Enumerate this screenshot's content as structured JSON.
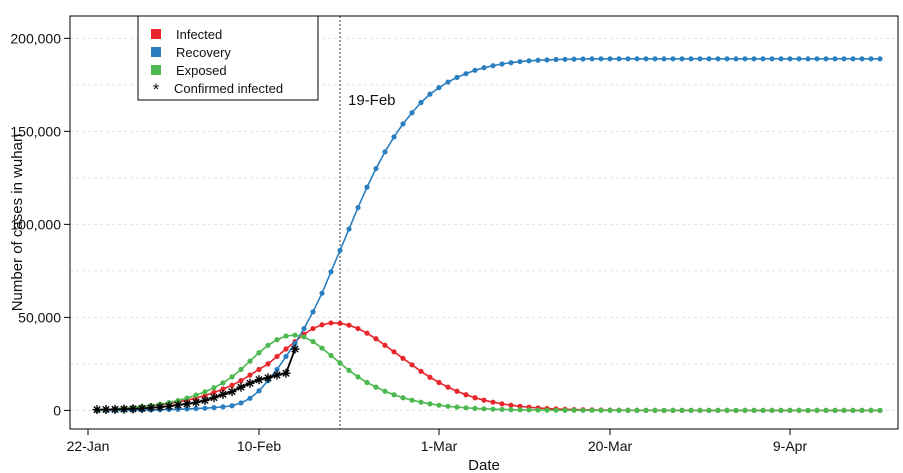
{
  "chart_data": {
    "type": "line",
    "xlabel": "Date",
    "ylabel": "Number of cases in wuhan",
    "x_tick_labels": [
      "22-Jan",
      "10-Feb",
      "1-Mar",
      "20-Mar",
      "9-Apr"
    ],
    "x_tick_days": [
      0,
      19,
      39,
      58,
      78
    ],
    "ylim": [
      0,
      200000
    ],
    "y_ticks": [
      0,
      50000,
      100000,
      150000,
      200000
    ],
    "y_tick_labels": [
      "0",
      "50,000",
      "100,000",
      "150,000",
      "200,000"
    ],
    "xlim_days": [
      -2,
      90
    ],
    "x_date_origin": "22-Jan",
    "grid": true,
    "legend_position": "top-left",
    "annotation": {
      "label": "19-Feb",
      "day": 28
    },
    "series": [
      {
        "name": "Infected",
        "color": "#e8262b",
        "marker": "dot",
        "points": [
          [
            1,
            0
          ],
          [
            2,
            400
          ],
          [
            3,
            800
          ],
          [
            4,
            1200
          ],
          [
            5,
            1600
          ],
          [
            6,
            2000
          ],
          [
            7,
            2500
          ],
          [
            8,
            3000
          ],
          [
            9,
            3700
          ],
          [
            10,
            4500
          ],
          [
            11,
            5500
          ],
          [
            12,
            6700
          ],
          [
            13,
            8000
          ],
          [
            14,
            9700
          ],
          [
            15,
            11500
          ],
          [
            16,
            13500
          ],
          [
            17,
            16000
          ],
          [
            18,
            19000
          ],
          [
            19,
            22000
          ],
          [
            20,
            25000
          ],
          [
            21,
            29000
          ],
          [
            22,
            33000
          ],
          [
            23,
            37000
          ],
          [
            24,
            41000
          ],
          [
            25,
            44000
          ],
          [
            26,
            46000
          ],
          [
            27,
            47000
          ],
          [
            28,
            46800
          ],
          [
            29,
            45800
          ],
          [
            30,
            44000
          ],
          [
            31,
            41500
          ],
          [
            32,
            38500
          ],
          [
            33,
            35000
          ],
          [
            34,
            31500
          ],
          [
            35,
            28000
          ],
          [
            36,
            24500
          ],
          [
            37,
            21000
          ],
          [
            38,
            17800
          ],
          [
            39,
            15000
          ],
          [
            40,
            12500
          ],
          [
            41,
            10300
          ],
          [
            42,
            8400
          ],
          [
            43,
            6800
          ],
          [
            44,
            5500
          ],
          [
            45,
            4400
          ],
          [
            46,
            3500
          ],
          [
            47,
            2800
          ],
          [
            48,
            2200
          ],
          [
            49,
            1700
          ],
          [
            50,
            1300
          ],
          [
            51,
            1000
          ],
          [
            52,
            800
          ],
          [
            53,
            600
          ],
          [
            54,
            450
          ],
          [
            55,
            350
          ],
          [
            56,
            270
          ],
          [
            57,
            200
          ],
          [
            58,
            150
          ],
          [
            59,
            110
          ],
          [
            60,
            80
          ],
          [
            61,
            60
          ],
          [
            62,
            40
          ],
          [
            63,
            30
          ],
          [
            64,
            20
          ],
          [
            65,
            15
          ],
          [
            66,
            10
          ],
          [
            67,
            5
          ],
          [
            68,
            0
          ],
          [
            69,
            0
          ],
          [
            70,
            0
          ],
          [
            71,
            0
          ],
          [
            72,
            0
          ],
          [
            73,
            0
          ],
          [
            74,
            0
          ],
          [
            75,
            0
          ],
          [
            76,
            0
          ],
          [
            77,
            0
          ],
          [
            78,
            0
          ],
          [
            79,
            0
          ],
          [
            80,
            0
          ],
          [
            81,
            0
          ],
          [
            82,
            0
          ],
          [
            83,
            0
          ],
          [
            84,
            0
          ],
          [
            85,
            0
          ],
          [
            86,
            0
          ],
          [
            87,
            0
          ],
          [
            88,
            0
          ]
        ]
      },
      {
        "name": "Recovery",
        "color": "#2a7fc0",
        "marker": "dot",
        "points": [
          [
            1,
            0
          ],
          [
            2,
            0
          ],
          [
            3,
            0
          ],
          [
            4,
            100
          ],
          [
            5,
            150
          ],
          [
            6,
            200
          ],
          [
            7,
            300
          ],
          [
            8,
            400
          ],
          [
            9,
            500
          ],
          [
            10,
            600
          ],
          [
            11,
            800
          ],
          [
            12,
            1000
          ],
          [
            13,
            1200
          ],
          [
            14,
            1500
          ],
          [
            15,
            1900
          ],
          [
            16,
            2500
          ],
          [
            17,
            4000
          ],
          [
            18,
            6500
          ],
          [
            19,
            10500
          ],
          [
            20,
            16000
          ],
          [
            21,
            22000
          ],
          [
            22,
            29000
          ],
          [
            23,
            36000
          ],
          [
            24,
            44000
          ],
          [
            25,
            53000
          ],
          [
            26,
            63000
          ],
          [
            27,
            74500
          ],
          [
            28,
            86000
          ],
          [
            29,
            97500
          ],
          [
            30,
            109000
          ],
          [
            31,
            120000
          ],
          [
            32,
            130000
          ],
          [
            33,
            139000
          ],
          [
            34,
            147000
          ],
          [
            35,
            154000
          ],
          [
            36,
            160000
          ],
          [
            37,
            165500
          ],
          [
            38,
            170000
          ],
          [
            39,
            173500
          ],
          [
            40,
            176500
          ],
          [
            41,
            179000
          ],
          [
            42,
            181000
          ],
          [
            43,
            182800
          ],
          [
            44,
            184200
          ],
          [
            45,
            185300
          ],
          [
            46,
            186200
          ],
          [
            47,
            186900
          ],
          [
            48,
            187500
          ],
          [
            49,
            187900
          ],
          [
            50,
            188200
          ],
          [
            51,
            188400
          ],
          [
            52,
            188600
          ],
          [
            53,
            188700
          ],
          [
            54,
            188800
          ],
          [
            55,
            188900
          ],
          [
            56,
            189000
          ],
          [
            57,
            189000
          ],
          [
            58,
            189000
          ],
          [
            59,
            189000
          ],
          [
            60,
            189000
          ],
          [
            61,
            189000
          ],
          [
            62,
            189000
          ],
          [
            63,
            189000
          ],
          [
            64,
            189000
          ],
          [
            65,
            189000
          ],
          [
            66,
            189000
          ],
          [
            67,
            189000
          ],
          [
            68,
            189000
          ],
          [
            69,
            189000
          ],
          [
            70,
            189000
          ],
          [
            71,
            189000
          ],
          [
            72,
            189000
          ],
          [
            73,
            189000
          ],
          [
            74,
            189000
          ],
          [
            75,
            189000
          ],
          [
            76,
            189000
          ],
          [
            77,
            189000
          ],
          [
            78,
            189000
          ],
          [
            79,
            189000
          ],
          [
            80,
            189000
          ],
          [
            81,
            189000
          ],
          [
            82,
            189000
          ],
          [
            83,
            189000
          ],
          [
            84,
            189000
          ],
          [
            85,
            189000
          ],
          [
            86,
            189000
          ],
          [
            87,
            189000
          ],
          [
            88,
            189000
          ]
        ]
      },
      {
        "name": "Exposed",
        "color": "#4cb84f",
        "marker": "dot",
        "points": [
          [
            1,
            0
          ],
          [
            2,
            300
          ],
          [
            3,
            700
          ],
          [
            4,
            1100
          ],
          [
            5,
            1500
          ],
          [
            6,
            2000
          ],
          [
            7,
            2600
          ],
          [
            8,
            3300
          ],
          [
            9,
            4200
          ],
          [
            10,
            5300
          ],
          [
            11,
            6600
          ],
          [
            12,
            8200
          ],
          [
            13,
            10000
          ],
          [
            14,
            12200
          ],
          [
            15,
            14800
          ],
          [
            16,
            18000
          ],
          [
            17,
            22000
          ],
          [
            18,
            26500
          ],
          [
            19,
            31000
          ],
          [
            20,
            35000
          ],
          [
            21,
            38000
          ],
          [
            22,
            40000
          ],
          [
            23,
            40500
          ],
          [
            24,
            39500
          ],
          [
            25,
            37000
          ],
          [
            26,
            33500
          ],
          [
            27,
            29500
          ],
          [
            28,
            25500
          ],
          [
            29,
            21500
          ],
          [
            30,
            18000
          ],
          [
            31,
            15000
          ],
          [
            32,
            12500
          ],
          [
            33,
            10300
          ],
          [
            34,
            8400
          ],
          [
            35,
            6800
          ],
          [
            36,
            5500
          ],
          [
            37,
            4400
          ],
          [
            38,
            3500
          ],
          [
            39,
            2800
          ],
          [
            40,
            2200
          ],
          [
            41,
            1750
          ],
          [
            42,
            1380
          ],
          [
            43,
            1080
          ],
          [
            44,
            850
          ],
          [
            45,
            660
          ],
          [
            46,
            510
          ],
          [
            47,
            400
          ],
          [
            48,
            310
          ],
          [
            49,
            240
          ],
          [
            50,
            185
          ],
          [
            51,
            140
          ],
          [
            52,
            110
          ],
          [
            53,
            85
          ],
          [
            54,
            65
          ],
          [
            55,
            50
          ],
          [
            56,
            38
          ],
          [
            57,
            29
          ],
          [
            58,
            22
          ],
          [
            59,
            17
          ],
          [
            60,
            13
          ],
          [
            61,
            10
          ],
          [
            62,
            8
          ],
          [
            63,
            6
          ],
          [
            64,
            4
          ],
          [
            65,
            3
          ],
          [
            66,
            2
          ],
          [
            67,
            1
          ],
          [
            68,
            0
          ],
          [
            69,
            0
          ],
          [
            70,
            0
          ],
          [
            71,
            0
          ],
          [
            72,
            0
          ],
          [
            73,
            0
          ],
          [
            74,
            0
          ],
          [
            75,
            0
          ],
          [
            76,
            0
          ],
          [
            77,
            0
          ],
          [
            78,
            0
          ],
          [
            79,
            0
          ],
          [
            80,
            0
          ],
          [
            81,
            0
          ],
          [
            82,
            0
          ],
          [
            83,
            0
          ],
          [
            84,
            0
          ],
          [
            85,
            0
          ],
          [
            86,
            0
          ],
          [
            87,
            0
          ],
          [
            88,
            0
          ]
        ]
      },
      {
        "name": "Confirmed infected",
        "color": "#000000",
        "marker": "asterisk",
        "points": [
          [
            1,
            400
          ],
          [
            2,
            500
          ],
          [
            3,
            550
          ],
          [
            4,
            700
          ],
          [
            5,
            800
          ],
          [
            6,
            1100
          ],
          [
            7,
            1400
          ],
          [
            8,
            1800
          ],
          [
            9,
            2300
          ],
          [
            10,
            2900
          ],
          [
            11,
            3500
          ],
          [
            12,
            4300
          ],
          [
            13,
            5400
          ],
          [
            14,
            6900
          ],
          [
            15,
            8600
          ],
          [
            16,
            10100
          ],
          [
            17,
            12500
          ],
          [
            18,
            14600
          ],
          [
            19,
            16500
          ],
          [
            20,
            17500
          ],
          [
            21,
            19000
          ],
          [
            22,
            20000
          ],
          [
            23,
            33000
          ]
        ]
      }
    ]
  }
}
